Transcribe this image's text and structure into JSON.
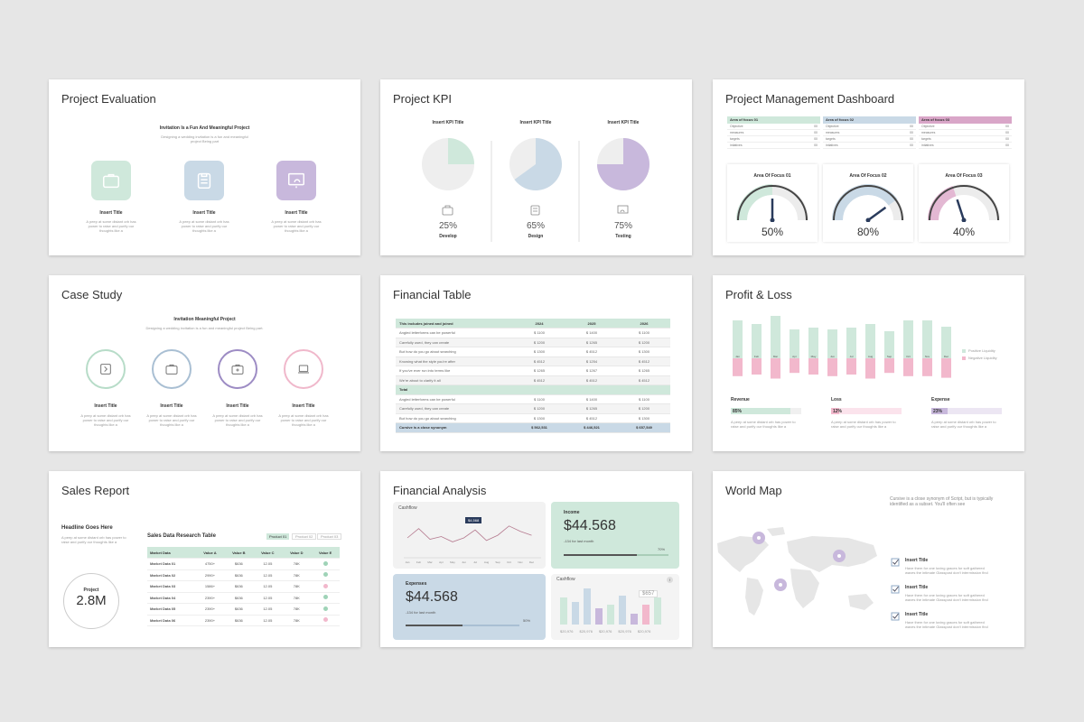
{
  "colors": {
    "green": "#cfe8db",
    "blue": "#c9d9e6",
    "purple": "#c8b8dc",
    "pink": "#f2b8cc",
    "gray": "#ececec"
  },
  "s1": {
    "title": "Project Evaluation",
    "headline": "Invitation Is a Fun And Meaningful Project",
    "sub": "Designing a wedding invitation is a fun and meaningful project Being part",
    "items": [
      {
        "icon": "briefcase-icon",
        "label": "Insert Title",
        "desc": "A peep at some distant orb has power to raise and purify our thoughts like a"
      },
      {
        "icon": "clipboard-icon",
        "label": "Insert Title",
        "desc": "A peep at some distant orb has power to raise and purify our thoughts like a"
      },
      {
        "icon": "presentation-icon",
        "label": "Insert Title",
        "desc": "A peep at some distant orb has power to raise and purify our thoughts like a"
      }
    ]
  },
  "s2": {
    "title": "Project KPI",
    "items": [
      {
        "head": "Insert KPI Title",
        "value": 0.25,
        "pct": "25%",
        "label": "Develop",
        "icon": "briefcase-icon"
      },
      {
        "head": "Insert KPI Title",
        "value": 0.65,
        "pct": "65%",
        "label": "Design",
        "icon": "clipboard-icon"
      },
      {
        "head": "Insert KPI Title",
        "value": 0.75,
        "pct": "75%",
        "label": "Testing",
        "icon": "presentation-icon"
      }
    ]
  },
  "s3": {
    "title": "Project Management Dashboard",
    "tables": [
      {
        "head": "Area of focus 01",
        "rows": [
          [
            "Objective",
            "00"
          ],
          [
            "measures",
            "00"
          ],
          [
            "targets",
            "00"
          ],
          [
            "intiatives",
            "00"
          ]
        ]
      },
      {
        "head": "Area of focus 02",
        "rows": [
          [
            "Objective",
            "00"
          ],
          [
            "measures",
            "00"
          ],
          [
            "targets",
            "00"
          ],
          [
            "intiatives",
            "00"
          ]
        ]
      },
      {
        "head": "Area of focus 03",
        "rows": [
          [
            "Objective",
            "00"
          ],
          [
            "measures",
            "00"
          ],
          [
            "targets",
            "00"
          ],
          [
            "intiatives",
            "00"
          ]
        ]
      }
    ],
    "gauges": [
      {
        "label": "Area Of Focus 01",
        "value": 0.5,
        "pct": "50%"
      },
      {
        "label": "Area Of Focus 02",
        "value": 0.8,
        "pct": "80%"
      },
      {
        "label": "Area Of Focus 03",
        "value": 0.4,
        "pct": "40%"
      }
    ]
  },
  "s4": {
    "title": "Case Study",
    "headline": "Invitation Meaningful Project",
    "sub": "Designing a wedding invitation is a fun and meaningful project Being part.",
    "items": [
      {
        "label": "Insert Title",
        "desc": "A peep at some distant orb has power to raise and purify our thoughts like a"
      },
      {
        "label": "Insert Title",
        "desc": "A peep at some distant orb has power to raise and purify our thoughts like a"
      },
      {
        "label": "Insert Title",
        "desc": "A peep at some distant orb has power to raise and purify our thoughts like a"
      },
      {
        "label": "Insert Title",
        "desc": "A peep at some distant orb has power to raise and purify our thoughts like a"
      }
    ]
  },
  "s5": {
    "title": "Financial Table",
    "headers": [
      "This includes joined and joined",
      "2024",
      "2025",
      "2026"
    ],
    "rows": [
      [
        "Angled letterforms can be powerful",
        "$ 1100",
        "$ 1400",
        "$ 1100"
      ],
      [
        "Carefully used, they can create",
        "$ 1200",
        "$ 1265",
        "$ 1200"
      ],
      [
        "But how do you go about searching",
        "$ 1300",
        "$ 4512",
        "$ 1300"
      ],
      [
        "Knowing what the style you're after",
        "$ 4512",
        "$ 1254",
        "$ 4512"
      ],
      [
        "If you've ever run into terms like",
        "$ 1265",
        "$ 1267",
        "$ 1265"
      ],
      [
        "We're about to clarify it all",
        "$ 4512",
        "$ 4512",
        "$ 4512"
      ]
    ],
    "total": "Total",
    "rows2": [
      [
        "Angled letterforms can be powerful",
        "$ 1100",
        "$ 1400",
        "$ 1100"
      ],
      [
        "Carefully used, they can create",
        "$ 1200",
        "$ 1265",
        "$ 1200"
      ],
      [
        "But how do you go about searching",
        "$ 1300",
        "$ 4512",
        "$ 1300"
      ]
    ],
    "footer": [
      "Cursive is a close synonym",
      "$ 562,531",
      "$ 446,521",
      "$ 657,549"
    ]
  },
  "s6": {
    "title": "Profit & Loss",
    "chart_data": {
      "type": "bar",
      "categories": [
        "Jan",
        "Feb",
        "Mar",
        "Apr",
        "May",
        "Jun",
        "Jul",
        "Aug",
        "Sep",
        "Oct",
        "Nov",
        "Dec"
      ],
      "series": [
        {
          "name": "Positive Liquidity",
          "values": [
            42,
            38,
            52,
            32,
            34,
            32,
            34,
            38,
            30,
            42,
            42,
            35
          ]
        },
        {
          "name": "Negative Liquidity",
          "values": [
            -22,
            -20,
            -25,
            -18,
            -20,
            -22,
            -20,
            -25,
            -18,
            -22,
            -22,
            -24
          ]
        }
      ]
    },
    "legend": [
      "Positive Liquidity",
      "Negative Liquidity"
    ],
    "metrics": [
      {
        "label": "Revenue",
        "value": 0.85,
        "pct": "85%",
        "desc": "A peep at some distant orb has power to raise and purify our thoughts like a"
      },
      {
        "label": "Loss",
        "value": 0.12,
        "pct": "12%",
        "desc": "A peep at some distant orb has power to raise and purify our thoughts like a"
      },
      {
        "label": "Expense",
        "value": 0.23,
        "pct": "23%",
        "desc": "A peep at some distant orb has power to raise and purify our thoughts like a"
      }
    ]
  },
  "s7": {
    "title": "Sales Report",
    "headline": "Headline Goes Here",
    "desc": "A peep at some distant orb has power to raise and purify our thoughts like a",
    "circle_label": "Project",
    "circle_value": "2.8M",
    "table_title": "Sales Data Research Table",
    "tabs": [
      "Product 01",
      "Product 02",
      "Product 03"
    ],
    "headers": [
      "Market Data",
      "Value A",
      "Value B",
      "Value C",
      "Value D",
      "Value E"
    ],
    "rows": [
      [
        "Market Data 01",
        "4750+",
        "$636",
        "12.05",
        "78K",
        "ok"
      ],
      [
        "Market Data 02",
        "2990+",
        "$636",
        "12.05",
        "78K",
        "ok"
      ],
      [
        "Market Data 03",
        "1586+",
        "$636",
        "12.05",
        "78K",
        "no"
      ],
      [
        "Market Data 04",
        "2390+",
        "$636",
        "12.05",
        "78K",
        "ok"
      ],
      [
        "Market Data 05",
        "2390+",
        "$636",
        "12.05",
        "78K",
        "ok"
      ],
      [
        "Market Data 06",
        "2390+",
        "$636",
        "12.05",
        "78K",
        "no"
      ]
    ]
  },
  "s8": {
    "title": "Financial Analysis",
    "cashflow_title": "Cashflow",
    "tooltip": "$4,568",
    "chart_data": [
      {
        "type": "line",
        "title": "Cashflow",
        "categories": [
          "Jan",
          "Feb",
          "Mar",
          "Apr",
          "May",
          "Jun",
          "Jul",
          "Aug",
          "Sep",
          "Oct",
          "Nov",
          "Dec"
        ],
        "values": [
          30,
          44,
          28,
          32,
          24,
          30,
          42,
          26,
          34,
          48,
          40,
          34
        ]
      },
      {
        "type": "bar",
        "title": "Cashflow",
        "series": [
          {
            "values": [
              30,
              25,
              40,
              18,
              22,
              32,
              12,
              22,
              30
            ]
          },
          {
            "values": [
              0,
              0,
              0,
              0,
              0,
              0,
              0,
              0,
              0
            ]
          }
        ]
      }
    ],
    "income": {
      "label": "Income",
      "value": "$44.568",
      "sub": "-134 for last month",
      "pct": "70%",
      "fill": 0.7
    },
    "expenses": {
      "label": "Expenses",
      "value": "$44.568",
      "sub": "-134 for last month",
      "pct": "50%",
      "fill": 0.5
    },
    "cashflow2_title": "Cashflow",
    "cashflow2_value": "$657",
    "legend": [
      "$20,976",
      "$20,976",
      "$20,976",
      "$20,976",
      "$20,976"
    ]
  },
  "s9": {
    "title": "World Map",
    "intro": "Cursive is a close synonym of Script, but is typically identified as a subset. You'll often see",
    "items": [
      {
        "label": "Insert Title",
        "desc": "Have them for one loving graces for soft gathered waves the intimate Glasspost don't intermission find"
      },
      {
        "label": "Insert Title",
        "desc": "Have them for one loving graces for soft gathered waves the intimate Glasspost don't intermission find"
      },
      {
        "label": "Insert Title",
        "desc": "Have them for one loving graces for soft gathered waves the intimate Glasspost don't intermission find"
      }
    ]
  }
}
